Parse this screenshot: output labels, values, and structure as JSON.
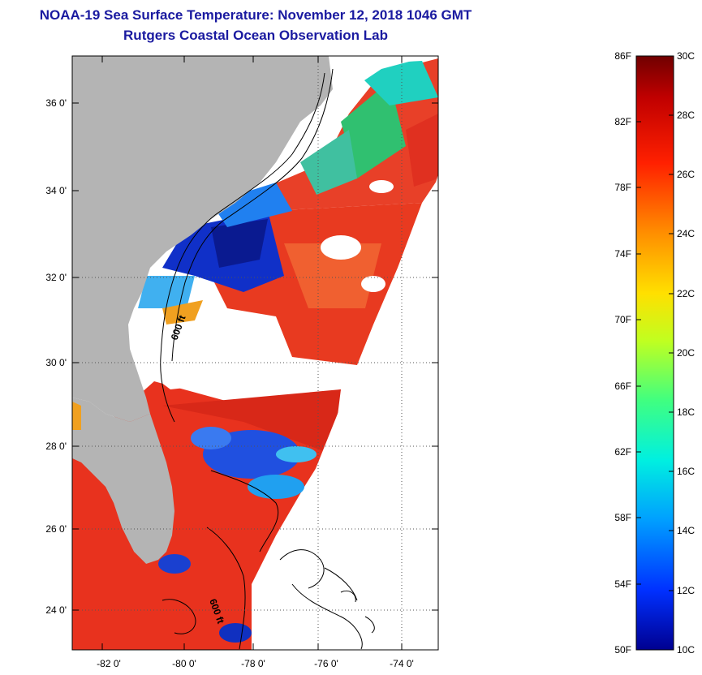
{
  "header": {
    "title": "NOAA-19 Sea Surface Temperature:  November 12, 2018 1046 GMT",
    "subtitle": "Rutgers Coastal Ocean Observation Lab"
  },
  "map": {
    "lat_ticks": [
      "36 0'",
      "34 0'",
      "32 0'",
      "30 0'",
      "28 0'",
      "26 0'",
      "24 0'"
    ],
    "lon_ticks": [
      "-82 0'",
      "-80 0'",
      "-78 0'",
      "-76 0'",
      "-74 0'"
    ],
    "contour_labels": [
      "600 ft",
      "600 ft"
    ],
    "colors": {
      "land": "#b4b4b4",
      "no_data": "#ffffff",
      "warm": "#e8321e",
      "cool": "#1040d0"
    }
  },
  "colorbar": {
    "f_labels": [
      "86F",
      "82F",
      "78F",
      "74F",
      "70F",
      "66F",
      "62F",
      "58F",
      "54F",
      "50F"
    ],
    "c_labels": [
      "30C",
      "28C",
      "26C",
      "24C",
      "22C",
      "20C",
      "18C",
      "16C",
      "14C",
      "12C",
      "10C"
    ],
    "colors": [
      "#000090",
      "#0030ff",
      "#00a0ff",
      "#00f0e0",
      "#40ff80",
      "#c0ff20",
      "#ffe000",
      "#ff9000",
      "#ff2000",
      "#c00000",
      "#700000"
    ]
  }
}
